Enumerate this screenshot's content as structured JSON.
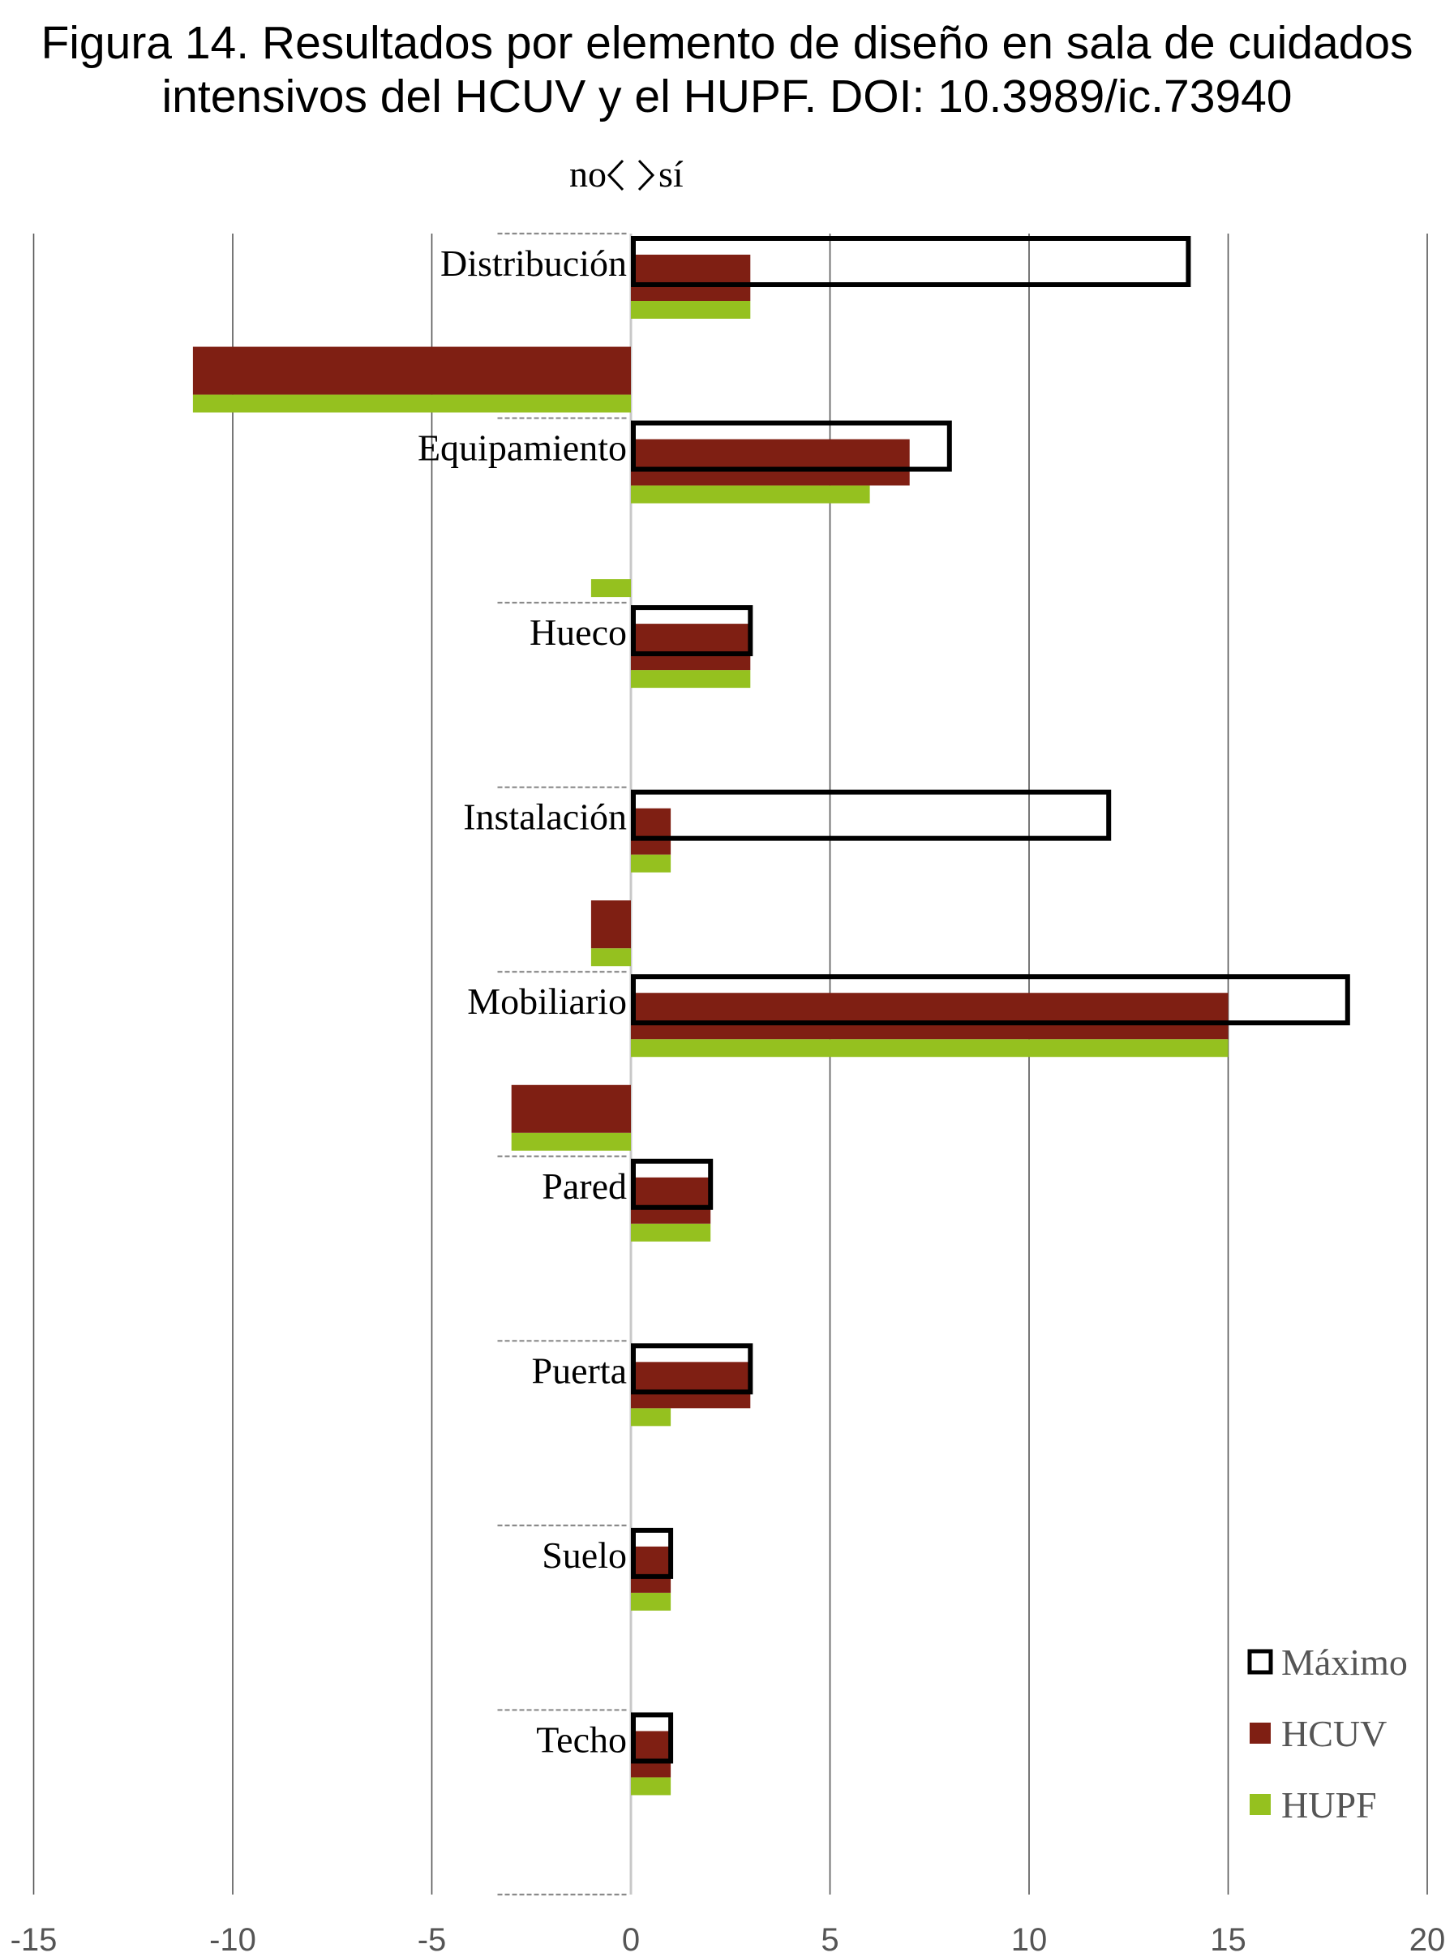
{
  "title_lines": [
    "Figura  14. Resultados por elemento de diseño en sala de cuidados",
    "intensivos del HCUV y el HUPF. DOI: 10.3989/ic.73940"
  ],
  "chart_data": {
    "type": "bar",
    "orientation": "horizontal",
    "annotation": {
      "left": "no",
      "right": "sí"
    },
    "categories": [
      "Distribución",
      "Equipamiento",
      "Hueco",
      "Instalación",
      "Mobiliario",
      "Pared",
      "Puerta",
      "Suelo",
      "Techo"
    ],
    "series": [
      {
        "name": "Máximo",
        "style": "outline",
        "color": "#000000",
        "positive": [
          14,
          8,
          3,
          12,
          18,
          2,
          3,
          1,
          1
        ]
      },
      {
        "name": "HCUV",
        "style": "fill",
        "color": "#7f1f13",
        "positive": [
          3,
          7,
          3,
          1,
          15,
          2,
          3,
          1,
          1
        ],
        "negative": [
          0,
          -11,
          0,
          0,
          -1,
          -3,
          0,
          0,
          0
        ]
      },
      {
        "name": "HUPF",
        "style": "fill",
        "color": "#95c11f",
        "positive": [
          3,
          6,
          3,
          1,
          15,
          2,
          1,
          1,
          1
        ],
        "negative": [
          0,
          -11,
          -1,
          0,
          -1,
          -3,
          0,
          0,
          0
        ]
      }
    ],
    "xlim": [
      -15,
      20
    ],
    "xticks": [
      -15,
      -10,
      -5,
      0,
      5,
      10,
      15,
      20
    ],
    "grid": "vertical",
    "legend": "bottom-right"
  }
}
